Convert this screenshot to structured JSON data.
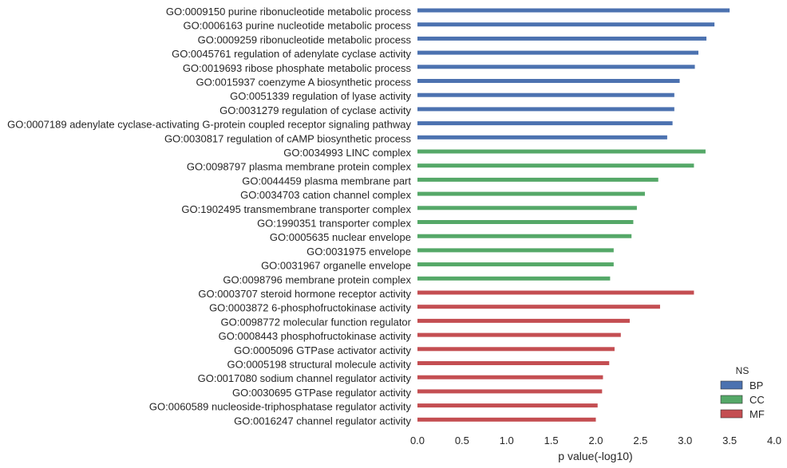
{
  "chart_data": {
    "type": "bar",
    "orientation": "horizontal",
    "xlabel": "p value(-log10)",
    "ylabel": "",
    "xlim": [
      0.0,
      4.0
    ],
    "xticks": [
      "0.0",
      "0.5",
      "1.0",
      "1.5",
      "2.0",
      "2.5",
      "3.0",
      "3.5",
      "4.0"
    ],
    "grid": false,
    "legend": {
      "title": "NS",
      "position": "bottom-right",
      "entries": [
        {
          "name": "BP",
          "color": "#4c72b0"
        },
        {
          "name": "CC",
          "color": "#55a868"
        },
        {
          "name": "MF",
          "color": "#c44e52"
        }
      ]
    },
    "bars": [
      {
        "label": "GO:0009150 purine ribonucleotide metabolic process",
        "value": 3.5,
        "ns": "BP"
      },
      {
        "label": "GO:0006163 purine nucleotide metabolic process",
        "value": 3.33,
        "ns": "BP"
      },
      {
        "label": "GO:0009259 ribonucleotide metabolic process",
        "value": 3.24,
        "ns": "BP"
      },
      {
        "label": "GO:0045761 regulation of adenylate cyclase activity",
        "value": 3.15,
        "ns": "BP"
      },
      {
        "label": "GO:0019693 ribose phosphate metabolic process",
        "value": 3.11,
        "ns": "BP"
      },
      {
        "label": "GO:0015937 coenzyme A biosynthetic process",
        "value": 2.94,
        "ns": "BP"
      },
      {
        "label": "GO:0051339 regulation of lyase activity",
        "value": 2.88,
        "ns": "BP"
      },
      {
        "label": "GO:0031279 regulation of cyclase activity",
        "value": 2.88,
        "ns": "BP"
      },
      {
        "label": "GO:0007189 adenylate cyclase-activating G-protein coupled receptor signaling pathway",
        "value": 2.86,
        "ns": "BP"
      },
      {
        "label": "GO:0030817 regulation of cAMP biosynthetic process",
        "value": 2.8,
        "ns": "BP"
      },
      {
        "label": "GO:0034993 LINC complex",
        "value": 3.23,
        "ns": "CC"
      },
      {
        "label": "GO:0098797 plasma membrane protein complex",
        "value": 3.1,
        "ns": "CC"
      },
      {
        "label": "GO:0044459 plasma membrane part",
        "value": 2.7,
        "ns": "CC"
      },
      {
        "label": "GO:0034703 cation channel complex",
        "value": 2.55,
        "ns": "CC"
      },
      {
        "label": "GO:1902495 transmembrane transporter complex",
        "value": 2.46,
        "ns": "CC"
      },
      {
        "label": "GO:1990351 transporter complex",
        "value": 2.42,
        "ns": "CC"
      },
      {
        "label": "GO:0005635 nuclear envelope",
        "value": 2.4,
        "ns": "CC"
      },
      {
        "label": "GO:0031975 envelope",
        "value": 2.2,
        "ns": "CC"
      },
      {
        "label": "GO:0031967 organelle envelope",
        "value": 2.2,
        "ns": "CC"
      },
      {
        "label": "GO:0098796 membrane protein complex",
        "value": 2.16,
        "ns": "CC"
      },
      {
        "label": "GO:0003707 steroid hormone receptor activity",
        "value": 3.1,
        "ns": "MF"
      },
      {
        "label": "GO:0003872 6-phosphofructokinase activity",
        "value": 2.72,
        "ns": "MF"
      },
      {
        "label": "GO:0098772 molecular function regulator",
        "value": 2.38,
        "ns": "MF"
      },
      {
        "label": "GO:0008443 phosphofructokinase activity",
        "value": 2.28,
        "ns": "MF"
      },
      {
        "label": "GO:0005096 GTPase activator activity",
        "value": 2.21,
        "ns": "MF"
      },
      {
        "label": "GO:0005198 structural molecule activity",
        "value": 2.15,
        "ns": "MF"
      },
      {
        "label": "GO:0017080 sodium channel regulator activity",
        "value": 2.08,
        "ns": "MF"
      },
      {
        "label": "GO:0030695 GTPase regulator activity",
        "value": 2.07,
        "ns": "MF"
      },
      {
        "label": "GO:0060589 nucleoside-triphosphatase regulator activity",
        "value": 2.02,
        "ns": "MF"
      },
      {
        "label": "GO:0016247 channel regulator activity",
        "value": 2.0,
        "ns": "MF"
      }
    ]
  }
}
